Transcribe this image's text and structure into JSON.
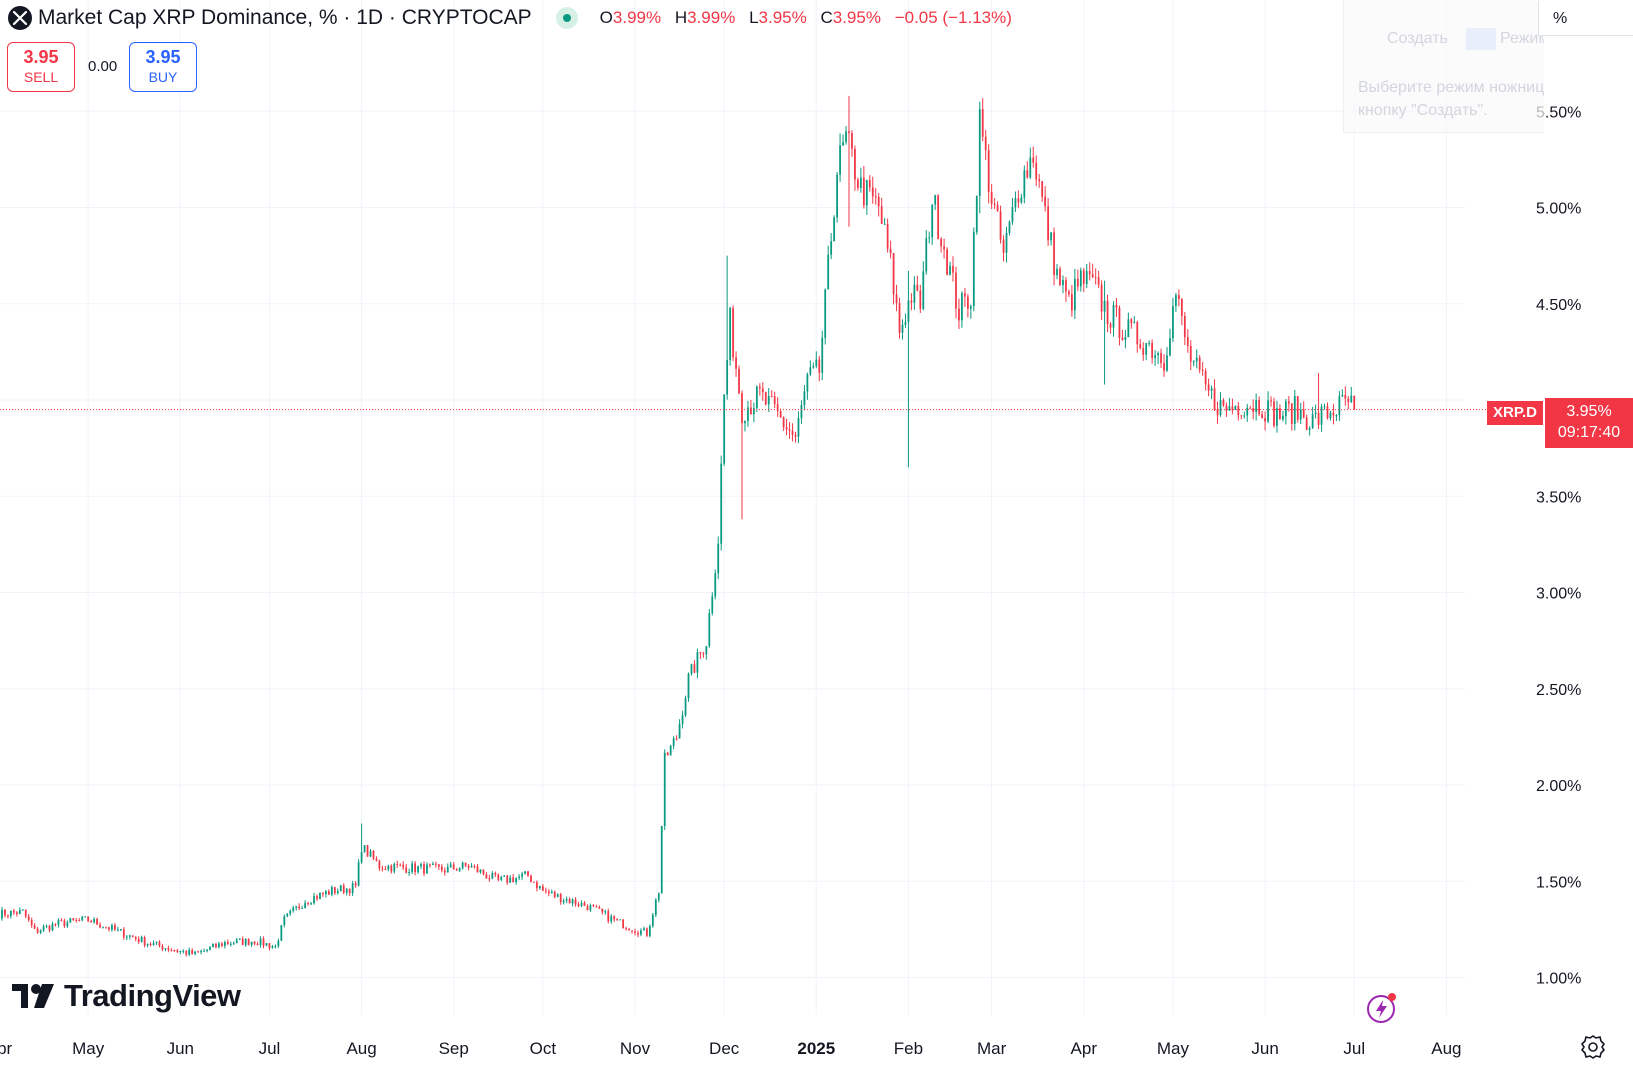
{
  "header": {
    "title": "Market Cap XRP Dominance, % · 1D · CRYPTOCAP",
    "open_label": "O",
    "open_value": "3.99%",
    "high_label": "H",
    "high_value": "3.99%",
    "low_label": "L",
    "low_value": "3.95%",
    "close_label": "C",
    "close_value": "3.95%",
    "change": "−0.05 (−1.13%)"
  },
  "trade": {
    "sell_price": "3.95",
    "sell_label": "SELL",
    "spread": "0.00",
    "buy_price": "3.95",
    "buy_label": "BUY"
  },
  "brand": {
    "name": "TradingView"
  },
  "scale_mode": "%",
  "last_price": {
    "symbol": "XRP.D",
    "value": "3.95%",
    "countdown": "09:17:40"
  },
  "ghost_toolbar": {
    "create": "Создать",
    "mode": "Режим",
    "hint_line1": "Выберите режим ножниц с помощ",
    "hint_line2": "кнопку \"Создать\"."
  },
  "colors": {
    "up": "#089981",
    "down": "#f23645",
    "grid": "#f0f3fa",
    "text": "#131722",
    "background": "#ffffff"
  },
  "icons": [
    "xrp-logo-icon",
    "market-status-icon",
    "tradingview-logo-icon",
    "bolt-icon",
    "settings-icon"
  ],
  "chart_data": {
    "type": "candlestick",
    "title": "Market Cap XRP Dominance, %",
    "interval": "1D",
    "ylabel": "%",
    "ylim": [
      0.75,
      5.85
    ],
    "y_ticks": [
      "5.50%",
      "5.00%",
      "4.50%",
      "3.50%",
      "3.00%",
      "2.50%",
      "2.00%",
      "1.50%",
      "1.00%"
    ],
    "x_ticks": [
      "Apr",
      "May",
      "Jun",
      "Jul",
      "Aug",
      "Sep",
      "Oct",
      "Nov",
      "Dec",
      "2025",
      "Feb",
      "Mar",
      "Apr",
      "May",
      "Jun",
      "Jul",
      "Aug"
    ],
    "x_tick_days": [
      0,
      30,
      61,
      91,
      122,
      153,
      183,
      214,
      244,
      275,
      306,
      334,
      365,
      395,
      426,
      456,
      487
    ],
    "x_range_days": [
      0,
      516
    ],
    "last_price": 3.95,
    "last_day": 456,
    "close_anchors": [
      [
        0,
        1.33
      ],
      [
        8,
        1.34
      ],
      [
        12,
        1.24
      ],
      [
        20,
        1.28
      ],
      [
        30,
        1.3
      ],
      [
        40,
        1.24
      ],
      [
        50,
        1.18
      ],
      [
        60,
        1.14
      ],
      [
        66,
        1.12
      ],
      [
        76,
        1.18
      ],
      [
        86,
        1.19
      ],
      [
        93,
        1.16
      ],
      [
        96,
        1.3
      ],
      [
        103,
        1.4
      ],
      [
        112,
        1.45
      ],
      [
        120,
        1.47
      ],
      [
        122,
        1.68
      ],
      [
        128,
        1.58
      ],
      [
        138,
        1.57
      ],
      [
        150,
        1.56
      ],
      [
        158,
        1.58
      ],
      [
        168,
        1.5
      ],
      [
        178,
        1.53
      ],
      [
        183,
        1.45
      ],
      [
        188,
        1.42
      ],
      [
        198,
        1.37
      ],
      [
        208,
        1.29
      ],
      [
        214,
        1.25
      ],
      [
        218,
        1.23
      ],
      [
        222,
        1.45
      ],
      [
        224,
        2.13
      ],
      [
        228,
        2.25
      ],
      [
        232,
        2.55
      ],
      [
        238,
        2.75
      ],
      [
        242,
        3.28
      ],
      [
        244,
        4.02
      ],
      [
        246,
        4.4
      ],
      [
        250,
        3.95
      ],
      [
        256,
        4.02
      ],
      [
        262,
        3.92
      ],
      [
        268,
        3.8
      ],
      [
        272,
        4.1
      ],
      [
        276,
        4.15
      ],
      [
        278,
        4.5
      ],
      [
        282,
        5.2
      ],
      [
        285,
        5.35
      ],
      [
        290,
        5.1
      ],
      [
        296,
        5.0
      ],
      [
        300,
        4.7
      ],
      [
        303,
        4.36
      ],
      [
        307,
        4.55
      ],
      [
        310,
        4.5
      ],
      [
        314,
        5.05
      ],
      [
        318,
        4.8
      ],
      [
        323,
        4.46
      ],
      [
        327,
        4.55
      ],
      [
        330,
        5.45
      ],
      [
        334,
        5.05
      ],
      [
        338,
        4.75
      ],
      [
        343,
        5.1
      ],
      [
        348,
        5.28
      ],
      [
        352,
        4.95
      ],
      [
        356,
        4.65
      ],
      [
        360,
        4.5
      ],
      [
        364,
        4.62
      ],
      [
        368,
        4.6
      ],
      [
        373,
        4.45
      ],
      [
        380,
        4.35
      ],
      [
        386,
        4.3
      ],
      [
        392,
        4.22
      ],
      [
        396,
        4.55
      ],
      [
        400,
        4.25
      ],
      [
        406,
        4.05
      ],
      [
        412,
        3.95
      ],
      [
        418,
        3.98
      ],
      [
        424,
        3.98
      ],
      [
        430,
        3.92
      ],
      [
        436,
        3.95
      ],
      [
        442,
        3.89
      ],
      [
        448,
        3.94
      ],
      [
        454,
        3.99
      ],
      [
        456,
        3.95
      ]
    ],
    "spikes": [
      [
        122,
        1.8,
        1.66
      ],
      [
        224,
        2.13,
        2.13
      ],
      [
        245,
        4.75,
        4.02
      ],
      [
        250,
        4.05,
        3.38
      ],
      [
        286,
        5.58,
        4.9
      ],
      [
        306,
        4.67,
        3.65
      ],
      [
        330,
        5.55,
        4.97
      ],
      [
        372,
        4.62,
        4.08
      ],
      [
        444,
        4.14,
        3.87
      ]
    ]
  }
}
